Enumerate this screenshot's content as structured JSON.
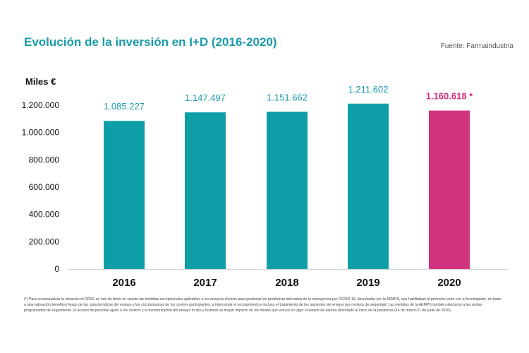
{
  "header": {
    "title": "Evolución de la inversión en I+D (2016-2020)",
    "source": "Fuente: Farmaindustria"
  },
  "chart_data": {
    "type": "bar",
    "title": "Evolución de la inversión en I+D (2016-2020)",
    "ylabel": "Miles €",
    "xlabel": "",
    "categories": [
      "2016",
      "2017",
      "2018",
      "2019",
      "2020"
    ],
    "values": [
      1085227,
      1147497,
      1151662,
      1211602,
      1160618
    ],
    "value_labels": [
      "1.085.227",
      "1.147.497",
      "1.151.662",
      "1.211.602",
      "1.160.618 *"
    ],
    "bar_colors": [
      "#0e9ea8",
      "#0e9ea8",
      "#0e9ea8",
      "#0e9ea8",
      "#d2337f"
    ],
    "label_colors": [
      "#1a9aaa",
      "#1a9aaa",
      "#1a9aaa",
      "#1a9aaa",
      "#d2337f"
    ],
    "ylim": [
      0,
      1200000
    ],
    "yticks": [
      0,
      200000,
      400000,
      600000,
      800000,
      1000000,
      1200000
    ],
    "ytick_labels": [
      "0",
      "200.000",
      "400.000",
      "600.000",
      "800.000",
      "1.000.000",
      "1.200.000"
    ],
    "grid": false,
    "legend": "none"
  },
  "footnote": "(*) Para contextualizar la situación en 2020, se han de tener en cuenta las medidas excepcionales aplicables a los ensayos clínicos para gestionar los problemas derivados de la emergencia por COVID-19, decretadas por la AEMPS, que habilitaban al promotor junto con el investigador, en base a una valoración beneficio/riesgo de las características del ensayo y las circunstancias de los centros participantes, a interrumpir el reclutamiento e incluso el tratamiento de los pacientes del ensayo por motivos de seguridad. Las medidas de la AEMPS también afectaron a las visitas programadas de seguimiento, el acceso de personal ajeno a los centros y la monitorización del ensayo in situ y tuvieron su mayor impacto en los meses que estuvo en vigor el estado de alarma decretado al inicio de la pandemia (14 de marzo-21 de junio de 2020)."
}
